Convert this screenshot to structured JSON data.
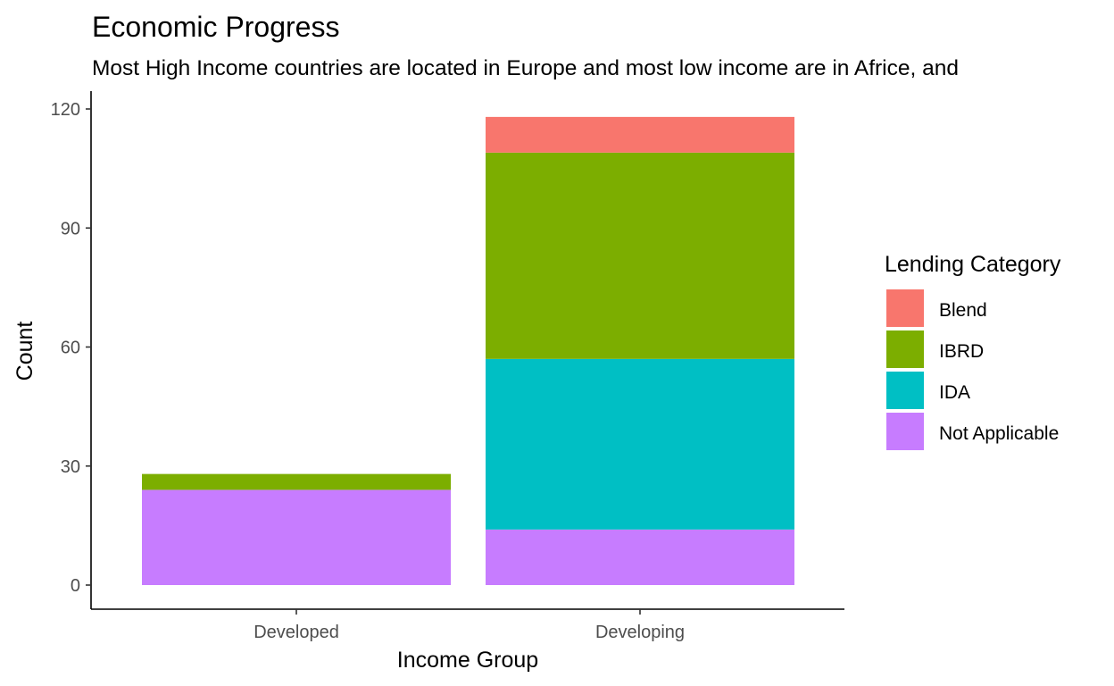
{
  "chart_data": {
    "type": "bar",
    "stacked": true,
    "title": "Economic Progress",
    "subtitle": "Most High Income countries are located in Europe and most low income are in Africe, and",
    "xlabel": "Income Group",
    "ylabel": "Count",
    "categories": [
      "Developed",
      "Developing"
    ],
    "ylim": [
      0,
      120
    ],
    "yticks": [
      0,
      30,
      60,
      90,
      120
    ],
    "grid": false,
    "legend": {
      "title": "Lending Category",
      "position": "right"
    },
    "series": [
      {
        "name": "Blend",
        "color": "#F8766D",
        "values": [
          0,
          9
        ]
      },
      {
        "name": "IBRD",
        "color": "#7CAE00",
        "values": [
          4,
          52
        ]
      },
      {
        "name": "IDA",
        "color": "#00BFC4",
        "values": [
          0,
          43
        ]
      },
      {
        "name": "Not Applicable",
        "color": "#C77CFF",
        "values": [
          24,
          14
        ]
      }
    ]
  }
}
